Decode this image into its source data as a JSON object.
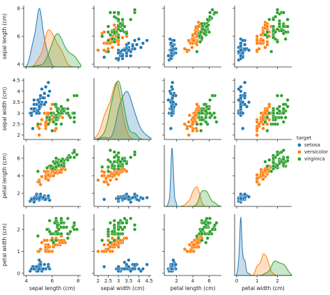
{
  "chart_data": {
    "type": "scatter",
    "subtype": "pairplot",
    "title": "",
    "legend": {
      "title": "target",
      "placement": "right",
      "entries": [
        "setosa",
        "versicolor",
        "virginica"
      ]
    },
    "colors": {
      "setosa": "#1f77b4",
      "versicolor": "#ff7f0e",
      "virginica": "#2ca02c"
    },
    "variables": [
      {
        "key": "sepal_length",
        "label": "sepal length (cm)",
        "range": [
          3.8,
          8.2
        ],
        "ticks": [
          4,
          6,
          8
        ]
      },
      {
        "key": "sepal_width",
        "label": "sepal width (cm)",
        "range": [
          1.8,
          4.6
        ],
        "ticks": [
          2.0,
          2.5,
          3.0,
          3.5,
          4.0,
          4.5
        ]
      },
      {
        "key": "petal_length",
        "label": "petal length (cm)",
        "range": [
          0.5,
          7.5
        ],
        "ticks": [
          2,
          4,
          6,
          8
        ]
      },
      {
        "key": "petal_width",
        "label": "petal width (cm)",
        "range": [
          -0.1,
          2.7
        ],
        "ticks": [
          0,
          1,
          2,
          3
        ]
      }
    ],
    "diagonal": "kde",
    "series": [
      {
        "name": "setosa",
        "points": [
          [
            5.1,
            3.5,
            1.4,
            0.2
          ],
          [
            4.9,
            3.0,
            1.4,
            0.2
          ],
          [
            4.7,
            3.2,
            1.3,
            0.2
          ],
          [
            4.6,
            3.1,
            1.5,
            0.2
          ],
          [
            5.0,
            3.6,
            1.4,
            0.2
          ],
          [
            5.4,
            3.9,
            1.7,
            0.4
          ],
          [
            4.6,
            3.4,
            1.4,
            0.3
          ],
          [
            5.0,
            3.4,
            1.5,
            0.2
          ],
          [
            4.4,
            2.9,
            1.4,
            0.2
          ],
          [
            4.9,
            3.1,
            1.5,
            0.1
          ],
          [
            5.4,
            3.7,
            1.5,
            0.2
          ],
          [
            4.8,
            3.4,
            1.6,
            0.2
          ],
          [
            4.8,
            3.0,
            1.4,
            0.1
          ],
          [
            4.3,
            3.0,
            1.1,
            0.1
          ],
          [
            5.8,
            4.0,
            1.2,
            0.2
          ],
          [
            5.7,
            4.4,
            1.5,
            0.4
          ],
          [
            5.4,
            3.9,
            1.3,
            0.4
          ],
          [
            5.1,
            3.5,
            1.4,
            0.3
          ],
          [
            5.7,
            3.8,
            1.7,
            0.3
          ],
          [
            5.1,
            3.8,
            1.5,
            0.3
          ],
          [
            5.4,
            3.4,
            1.7,
            0.2
          ],
          [
            5.1,
            3.7,
            1.5,
            0.4
          ],
          [
            4.6,
            3.6,
            1.0,
            0.2
          ],
          [
            5.1,
            3.3,
            1.7,
            0.5
          ],
          [
            4.8,
            3.4,
            1.9,
            0.2
          ],
          [
            5.0,
            3.0,
            1.6,
            0.2
          ],
          [
            5.0,
            3.4,
            1.6,
            0.4
          ],
          [
            5.2,
            3.5,
            1.5,
            0.2
          ],
          [
            5.2,
            3.4,
            1.4,
            0.2
          ],
          [
            4.7,
            3.2,
            1.6,
            0.2
          ],
          [
            4.8,
            3.1,
            1.6,
            0.2
          ],
          [
            5.4,
            3.4,
            1.5,
            0.4
          ],
          [
            5.2,
            4.1,
            1.5,
            0.1
          ],
          [
            5.5,
            4.2,
            1.4,
            0.2
          ],
          [
            4.9,
            3.1,
            1.5,
            0.2
          ],
          [
            5.0,
            3.2,
            1.2,
            0.2
          ],
          [
            5.5,
            3.5,
            1.3,
            0.2
          ],
          [
            4.9,
            3.6,
            1.4,
            0.1
          ],
          [
            4.4,
            3.0,
            1.3,
            0.2
          ],
          [
            5.1,
            3.4,
            1.5,
            0.2
          ],
          [
            5.0,
            3.5,
            1.3,
            0.3
          ],
          [
            4.5,
            2.3,
            1.3,
            0.3
          ],
          [
            4.4,
            3.2,
            1.3,
            0.2
          ],
          [
            5.0,
            3.5,
            1.6,
            0.6
          ],
          [
            5.1,
            3.8,
            1.9,
            0.4
          ],
          [
            4.8,
            3.0,
            1.4,
            0.3
          ],
          [
            5.1,
            3.8,
            1.6,
            0.2
          ],
          [
            4.6,
            3.2,
            1.4,
            0.2
          ],
          [
            5.3,
            3.7,
            1.5,
            0.2
          ],
          [
            5.0,
            3.3,
            1.4,
            0.2
          ]
        ]
      },
      {
        "name": "versicolor",
        "points": [
          [
            7.0,
            3.2,
            4.7,
            1.4
          ],
          [
            6.4,
            3.2,
            4.5,
            1.5
          ],
          [
            6.9,
            3.1,
            4.9,
            1.5
          ],
          [
            5.5,
            2.3,
            4.0,
            1.3
          ],
          [
            6.5,
            2.8,
            4.6,
            1.5
          ],
          [
            5.7,
            2.8,
            4.5,
            1.3
          ],
          [
            6.3,
            3.3,
            4.7,
            1.6
          ],
          [
            4.9,
            2.4,
            3.3,
            1.0
          ],
          [
            6.6,
            2.9,
            4.6,
            1.3
          ],
          [
            5.2,
            2.7,
            3.9,
            1.4
          ],
          [
            5.0,
            2.0,
            3.5,
            1.0
          ],
          [
            5.9,
            3.0,
            4.2,
            1.5
          ],
          [
            6.0,
            2.2,
            4.0,
            1.0
          ],
          [
            6.1,
            2.9,
            4.7,
            1.4
          ],
          [
            5.6,
            2.9,
            3.6,
            1.3
          ],
          [
            6.7,
            3.1,
            4.4,
            1.4
          ],
          [
            5.6,
            3.0,
            4.5,
            1.5
          ],
          [
            5.8,
            2.7,
            4.1,
            1.0
          ],
          [
            6.2,
            2.2,
            4.5,
            1.5
          ],
          [
            5.6,
            2.5,
            3.9,
            1.1
          ],
          [
            5.9,
            3.2,
            4.8,
            1.8
          ],
          [
            6.1,
            2.8,
            4.0,
            1.3
          ],
          [
            6.3,
            2.5,
            4.9,
            1.5
          ],
          [
            6.1,
            2.8,
            4.7,
            1.2
          ],
          [
            6.4,
            2.9,
            4.3,
            1.3
          ],
          [
            6.6,
            3.0,
            4.4,
            1.4
          ],
          [
            6.8,
            2.8,
            4.8,
            1.4
          ],
          [
            6.7,
            3.0,
            5.0,
            1.7
          ],
          [
            6.0,
            2.9,
            4.5,
            1.5
          ],
          [
            5.7,
            2.6,
            3.5,
            1.0
          ],
          [
            5.5,
            2.4,
            3.8,
            1.1
          ],
          [
            5.5,
            2.4,
            3.7,
            1.0
          ],
          [
            5.8,
            2.7,
            3.9,
            1.2
          ],
          [
            6.0,
            2.7,
            5.1,
            1.6
          ],
          [
            5.4,
            3.0,
            4.5,
            1.5
          ],
          [
            6.0,
            3.4,
            4.5,
            1.6
          ],
          [
            6.7,
            3.1,
            4.7,
            1.5
          ],
          [
            6.3,
            2.3,
            4.4,
            1.3
          ],
          [
            5.6,
            3.0,
            4.1,
            1.3
          ],
          [
            5.5,
            2.5,
            4.0,
            1.3
          ],
          [
            5.5,
            2.6,
            4.4,
            1.2
          ],
          [
            6.1,
            3.0,
            4.6,
            1.4
          ],
          [
            5.8,
            2.6,
            4.0,
            1.2
          ],
          [
            5.0,
            2.3,
            3.3,
            1.0
          ],
          [
            5.6,
            2.7,
            4.2,
            1.3
          ],
          [
            5.7,
            3.0,
            4.2,
            1.2
          ],
          [
            5.7,
            2.9,
            4.2,
            1.3
          ],
          [
            6.2,
            2.9,
            4.3,
            1.3
          ],
          [
            5.1,
            2.5,
            3.0,
            1.1
          ],
          [
            5.7,
            2.8,
            4.1,
            1.3
          ]
        ]
      },
      {
        "name": "virginica",
        "points": [
          [
            6.3,
            3.3,
            6.0,
            2.5
          ],
          [
            5.8,
            2.7,
            5.1,
            1.9
          ],
          [
            7.1,
            3.0,
            5.9,
            2.1
          ],
          [
            6.3,
            2.9,
            5.6,
            1.8
          ],
          [
            6.5,
            3.0,
            5.8,
            2.2
          ],
          [
            7.6,
            3.0,
            6.6,
            2.1
          ],
          [
            4.9,
            2.5,
            4.5,
            1.7
          ],
          [
            7.3,
            2.9,
            6.3,
            1.8
          ],
          [
            6.7,
            2.5,
            5.8,
            1.8
          ],
          [
            7.2,
            3.6,
            6.1,
            2.5
          ],
          [
            6.5,
            3.2,
            5.1,
            2.0
          ],
          [
            6.4,
            2.7,
            5.3,
            1.9
          ],
          [
            6.8,
            3.0,
            5.5,
            2.1
          ],
          [
            5.7,
            2.5,
            5.0,
            2.0
          ],
          [
            5.8,
            2.8,
            5.1,
            2.4
          ],
          [
            6.4,
            3.2,
            5.3,
            2.3
          ],
          [
            6.5,
            3.0,
            5.5,
            1.8
          ],
          [
            7.7,
            3.8,
            6.7,
            2.2
          ],
          [
            7.7,
            2.6,
            6.9,
            2.3
          ],
          [
            6.0,
            2.2,
            5.0,
            1.5
          ],
          [
            6.9,
            3.2,
            5.7,
            2.3
          ],
          [
            5.6,
            2.8,
            4.9,
            2.0
          ],
          [
            7.7,
            2.8,
            6.7,
            2.0
          ],
          [
            6.3,
            2.7,
            4.9,
            1.8
          ],
          [
            6.7,
            3.3,
            5.7,
            2.1
          ],
          [
            7.2,
            3.2,
            6.0,
            1.8
          ],
          [
            6.2,
            2.8,
            4.8,
            1.8
          ],
          [
            6.1,
            3.0,
            4.9,
            1.8
          ],
          [
            6.4,
            2.8,
            5.6,
            2.1
          ],
          [
            7.2,
            3.0,
            5.8,
            1.6
          ],
          [
            7.4,
            2.8,
            6.1,
            1.9
          ],
          [
            7.9,
            3.8,
            6.4,
            2.0
          ],
          [
            6.4,
            2.8,
            5.6,
            2.2
          ],
          [
            6.3,
            2.8,
            5.1,
            1.5
          ],
          [
            6.1,
            2.6,
            5.6,
            1.4
          ],
          [
            7.7,
            3.0,
            6.1,
            2.3
          ],
          [
            6.3,
            3.4,
            5.6,
            2.4
          ],
          [
            6.4,
            3.1,
            5.5,
            1.8
          ],
          [
            6.0,
            3.0,
            4.8,
            1.8
          ],
          [
            6.9,
            3.1,
            5.4,
            2.1
          ],
          [
            6.7,
            3.1,
            5.6,
            2.4
          ],
          [
            6.9,
            3.1,
            5.1,
            2.3
          ],
          [
            5.8,
            2.7,
            5.1,
            1.9
          ],
          [
            6.8,
            3.2,
            5.9,
            2.3
          ],
          [
            6.7,
            3.3,
            5.7,
            2.5
          ],
          [
            6.7,
            3.0,
            5.2,
            2.3
          ],
          [
            6.3,
            2.5,
            5.0,
            1.9
          ],
          [
            6.5,
            3.0,
            5.2,
            2.0
          ],
          [
            6.2,
            3.4,
            5.4,
            2.3
          ],
          [
            5.9,
            3.0,
            5.1,
            1.8
          ]
        ]
      }
    ]
  }
}
